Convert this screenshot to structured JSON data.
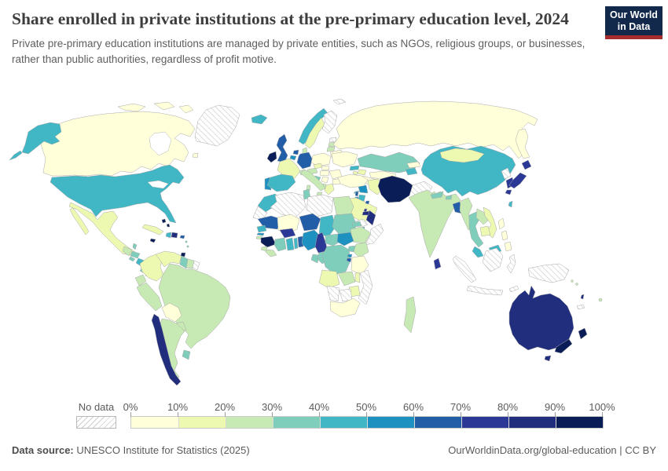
{
  "header": {
    "title": "Share enrolled in private institutions at the pre-primary education level, 2024",
    "subtitle": "Private pre-primary education institutions are managed by private entities, such as NGOs, religious groups, or businesses, rather than public authorities, regardless of profit motive.",
    "logo": {
      "line1": "Our World",
      "line2": "in Data",
      "bg_color": "#12294b",
      "accent_color": "#a52d2d"
    }
  },
  "legend": {
    "no_data_label": "No data",
    "tick_labels": [
      "0%",
      "10%",
      "20%",
      "30%",
      "40%",
      "50%",
      "60%",
      "70%",
      "80%",
      "90%",
      "100%"
    ]
  },
  "footer": {
    "source_label": "Data source:",
    "source_text": " UNESCO Institute for Statistics (2025)",
    "right_text": "OurWorldinData.org/global-education | CC BY"
  },
  "chart_data": {
    "type": "heatmap",
    "subtype": "choropleth-world-map",
    "title": "Share enrolled in private institutions at the pre-primary education level, 2024",
    "unit": "% of pre-primary enrolment in private institutions",
    "no_data_label": "No data",
    "legend_position": "bottom",
    "bins": [
      {
        "label": "0-10%",
        "color": "#ffffd9"
      },
      {
        "label": "10-20%",
        "color": "#edf8b1"
      },
      {
        "label": "20-30%",
        "color": "#c7e9b4"
      },
      {
        "label": "30-40%",
        "color": "#7fcdbb"
      },
      {
        "label": "40-50%",
        "color": "#41b6c4"
      },
      {
        "label": "50-60%",
        "color": "#1d91c0"
      },
      {
        "label": "60-70%",
        "color": "#225ea8"
      },
      {
        "label": "70-80%",
        "color": "#2c3895"
      },
      {
        "label": "80-90%",
        "color": "#202e7d"
      },
      {
        "label": "90-100%",
        "color": "#0b1d57"
      }
    ],
    "regions": [
      {
        "id": "canada",
        "name": "Canada",
        "bin": 0
      },
      {
        "id": "usa",
        "name": "United States",
        "bin": 4
      },
      {
        "id": "greenland",
        "name": "Greenland",
        "bin": -1
      },
      {
        "id": "mexico",
        "name": "Mexico",
        "bin": 1
      },
      {
        "id": "guatemala",
        "name": "Guatemala",
        "bin": 2
      },
      {
        "id": "belize",
        "name": "Belize",
        "bin": 3
      },
      {
        "id": "honduras",
        "name": "Honduras",
        "bin": 3
      },
      {
        "id": "el-salvador",
        "name": "El Salvador",
        "bin": 3
      },
      {
        "id": "nicaragua",
        "name": "Nicaragua",
        "bin": 4
      },
      {
        "id": "costa-rica",
        "name": "Costa Rica",
        "bin": 3
      },
      {
        "id": "panama",
        "name": "Panama",
        "bin": 4
      },
      {
        "id": "cuba",
        "name": "Cuba",
        "bin": 1
      },
      {
        "id": "jamaica",
        "name": "Jamaica",
        "bin": 9
      },
      {
        "id": "haiti",
        "name": "Haiti",
        "bin": 4
      },
      {
        "id": "dominican-republic",
        "name": "Dominican Republic",
        "bin": 8
      },
      {
        "id": "puerto-rico",
        "name": "Puerto Rico",
        "bin": 6
      },
      {
        "id": "bahamas",
        "name": "Bahamas",
        "bin": 9
      },
      {
        "id": "trinidad-and-tobago",
        "name": "Trinidad and Tobago",
        "bin": 9
      },
      {
        "id": "lesser-antilles",
        "name": "Lesser Antilles",
        "bin": 3
      },
      {
        "id": "colombia",
        "name": "Colombia",
        "bin": 1
      },
      {
        "id": "venezuela",
        "name": "Venezuela",
        "bin": 1
      },
      {
        "id": "guyana",
        "name": "Guyana",
        "bin": 3
      },
      {
        "id": "suriname",
        "name": "Suriname",
        "bin": 2
      },
      {
        "id": "french-guiana",
        "name": "French Guiana",
        "bin": -1
      },
      {
        "id": "ecuador",
        "name": "Ecuador",
        "bin": 2
      },
      {
        "id": "peru",
        "name": "Peru",
        "bin": 2
      },
      {
        "id": "brazil",
        "name": "Brazil",
        "bin": 2
      },
      {
        "id": "bolivia",
        "name": "Bolivia",
        "bin": 0
      },
      {
        "id": "paraguay",
        "name": "Paraguay",
        "bin": 2
      },
      {
        "id": "uruguay",
        "name": "Uruguay",
        "bin": 3
      },
      {
        "id": "argentina",
        "name": "Argentina",
        "bin": 2
      },
      {
        "id": "chile",
        "name": "Chile",
        "bin": 8
      },
      {
        "id": "iceland",
        "name": "Iceland",
        "bin": 4
      },
      {
        "id": "ireland",
        "name": "Ireland",
        "bin": 9
      },
      {
        "id": "united-kingdom",
        "name": "United Kingdom",
        "bin": 6
      },
      {
        "id": "norway",
        "name": "Norway",
        "bin": 4
      },
      {
        "id": "sweden",
        "name": "Sweden",
        "bin": 1
      },
      {
        "id": "finland",
        "name": "Finland",
        "bin": -1
      },
      {
        "id": "denmark",
        "name": "Denmark",
        "bin": 2
      },
      {
        "id": "estonia",
        "name": "Estonia",
        "bin": -1
      },
      {
        "id": "latvia",
        "name": "Latvia",
        "bin": 2
      },
      {
        "id": "lithuania",
        "name": "Lithuania",
        "bin": 2
      },
      {
        "id": "belarus",
        "name": "Belarus",
        "bin": 0
      },
      {
        "id": "poland",
        "name": "Poland",
        "bin": 0
      },
      {
        "id": "germany",
        "name": "Germany",
        "bin": 6
      },
      {
        "id": "netherlands",
        "name": "Netherlands",
        "bin": 6
      },
      {
        "id": "belgium",
        "name": "Belgium",
        "bin": 5
      },
      {
        "id": "france",
        "name": "France",
        "bin": 1
      },
      {
        "id": "switzerland",
        "name": "Switzerland",
        "bin": 2
      },
      {
        "id": "austria",
        "name": "Austria",
        "bin": 2
      },
      {
        "id": "czechia",
        "name": "Czechia",
        "bin": 1
      },
      {
        "id": "slovakia",
        "name": "Slovakia",
        "bin": 0
      },
      {
        "id": "hungary",
        "name": "Hungary",
        "bin": 0
      },
      {
        "id": "croatia",
        "name": "Croatia",
        "bin": 3
      },
      {
        "id": "serbia",
        "name": "Serbia",
        "bin": 0
      },
      {
        "id": "albania",
        "name": "Albania",
        "bin": 2
      },
      {
        "id": "greece",
        "name": "Greece",
        "bin": 1
      },
      {
        "id": "romania",
        "name": "Romania",
        "bin": 0
      },
      {
        "id": "bulgaria",
        "name": "Bulgaria",
        "bin": 0
      },
      {
        "id": "italy",
        "name": "Italy",
        "bin": 2
      },
      {
        "id": "ukraine",
        "name": "Ukraine",
        "bin": 0
      },
      {
        "id": "portugal",
        "name": "Portugal",
        "bin": 5
      },
      {
        "id": "spain",
        "name": "Spain",
        "bin": 4
      },
      {
        "id": "russia",
        "name": "Russia",
        "bin": 0
      },
      {
        "id": "svalbard",
        "name": "Svalbard",
        "bin": -1
      },
      {
        "id": "georgia",
        "name": "Georgia",
        "bin": 4
      },
      {
        "id": "azerbaijan",
        "name": "Azerbaijan",
        "bin": 1
      },
      {
        "id": "armenia",
        "name": "Armenia",
        "bin": 1
      },
      {
        "id": "kazakhstan",
        "name": "Kazakhstan",
        "bin": 3
      },
      {
        "id": "uzbekistan",
        "name": "Uzbekistan",
        "bin": 0
      },
      {
        "id": "turkmenistan",
        "name": "Turkmenistan",
        "bin": 0
      },
      {
        "id": "kyrgyzstan",
        "name": "Kyrgyzstan",
        "bin": 0
      },
      {
        "id": "tajikistan",
        "name": "Tajikistan",
        "bin": 4
      },
      {
        "id": "turkey",
        "name": "Turkey",
        "bin": 0
      },
      {
        "id": "cyprus",
        "name": "Cyprus",
        "bin": 4
      },
      {
        "id": "syria",
        "name": "Syria",
        "bin": 5
      },
      {
        "id": "lebanon",
        "name": "Lebanon",
        "bin": 6
      },
      {
        "id": "israel",
        "name": "Israel",
        "bin": 5
      },
      {
        "id": "jordan",
        "name": "Jordan",
        "bin": 4
      },
      {
        "id": "iraq",
        "name": "Iraq",
        "bin": 1
      },
      {
        "id": "iran",
        "name": "Iran",
        "bin": 9
      },
      {
        "id": "afghanistan",
        "name": "Afghanistan",
        "bin": -1
      },
      {
        "id": "pakistan",
        "name": "Pakistan",
        "bin": 2
      },
      {
        "id": "saudi-arabia",
        "name": "Saudi Arabia",
        "bin": 1
      },
      {
        "id": "yemen",
        "name": "Yemen",
        "bin": -1
      },
      {
        "id": "oman",
        "name": "Oman",
        "bin": 8
      },
      {
        "id": "uae",
        "name": "United Arab Emirates",
        "bin": 8
      },
      {
        "id": "kuwait",
        "name": "Kuwait",
        "bin": 6
      },
      {
        "id": "qatar",
        "name": "Qatar",
        "bin": 7
      },
      {
        "id": "morocco",
        "name": "Morocco",
        "bin": 4
      },
      {
        "id": "western-sahara",
        "name": "Western Sahara",
        "bin": -1
      },
      {
        "id": "algeria",
        "name": "Algeria",
        "bin": -1
      },
      {
        "id": "tunisia",
        "name": "Tunisia",
        "bin": 3
      },
      {
        "id": "libya",
        "name": "Libya",
        "bin": -1
      },
      {
        "id": "egypt",
        "name": "Egypt",
        "bin": 2
      },
      {
        "id": "mauritania",
        "name": "Mauritania",
        "bin": 6
      },
      {
        "id": "mali",
        "name": "Mali",
        "bin": 0
      },
      {
        "id": "niger",
        "name": "Niger",
        "bin": 6
      },
      {
        "id": "chad",
        "name": "Chad",
        "bin": 4
      },
      {
        "id": "sudan",
        "name": "Sudan",
        "bin": 3
      },
      {
        "id": "eritrea",
        "name": "Eritrea",
        "bin": 3
      },
      {
        "id": "djibouti",
        "name": "Djibouti",
        "bin": 4
      },
      {
        "id": "ethiopia",
        "name": "Ethiopia",
        "bin": 2
      },
      {
        "id": "somalia",
        "name": "Somalia",
        "bin": -1
      },
      {
        "id": "senegal",
        "name": "Senegal",
        "bin": 4
      },
      {
        "id": "gambia",
        "name": "Gambia",
        "bin": 5
      },
      {
        "id": "guinea-bissau",
        "name": "Guinea-Bissau",
        "bin": 2
      },
      {
        "id": "guinea",
        "name": "Guinea",
        "bin": 9
      },
      {
        "id": "sierra-leone",
        "name": "Sierra Leone",
        "bin": 2
      },
      {
        "id": "liberia",
        "name": "Liberia",
        "bin": 2
      },
      {
        "id": "cote-divoire",
        "name": "Cote d'Ivoire",
        "bin": 3
      },
      {
        "id": "burkina-faso",
        "name": "Burkina Faso",
        "bin": 7
      },
      {
        "id": "ghana",
        "name": "Ghana",
        "bin": 4
      },
      {
        "id": "togo",
        "name": "Togo",
        "bin": 4
      },
      {
        "id": "benin",
        "name": "Benin",
        "bin": 6
      },
      {
        "id": "nigeria",
        "name": "Nigeria",
        "bin": 5
      },
      {
        "id": "cameroon",
        "name": "Cameroon",
        "bin": 7
      },
      {
        "id": "central-african-republic",
        "name": "Central African Republic",
        "bin": 3
      },
      {
        "id": "south-sudan",
        "name": "South Sudan",
        "bin": 5
      },
      {
        "id": "gabon",
        "name": "Gabon",
        "bin": 3
      },
      {
        "id": "congo",
        "name": "Congo",
        "bin": 3
      },
      {
        "id": "drc",
        "name": "Democratic Republic of Congo",
        "bin": 3
      },
      {
        "id": "uganda",
        "name": "Uganda",
        "bin": 3
      },
      {
        "id": "kenya",
        "name": "Kenya",
        "bin": 2
      },
      {
        "id": "rwanda",
        "name": "Rwanda",
        "bin": 5
      },
      {
        "id": "burundi",
        "name": "Burundi",
        "bin": 6
      },
      {
        "id": "tanzania",
        "name": "Tanzania",
        "bin": 0
      },
      {
        "id": "angola",
        "name": "Angola",
        "bin": 1
      },
      {
        "id": "zambia",
        "name": "Zambia",
        "bin": 2
      },
      {
        "id": "malawi",
        "name": "Malawi",
        "bin": 1
      },
      {
        "id": "mozambique",
        "name": "Mozambique",
        "bin": -1
      },
      {
        "id": "zimbabwe",
        "name": "Zimbabwe",
        "bin": 1
      },
      {
        "id": "botswana",
        "name": "Botswana",
        "bin": -1
      },
      {
        "id": "namibia",
        "name": "Namibia",
        "bin": -1
      },
      {
        "id": "south-africa",
        "name": "South Africa",
        "bin": 0
      },
      {
        "id": "madagascar",
        "name": "Madagascar",
        "bin": 2
      },
      {
        "id": "india",
        "name": "India",
        "bin": 2
      },
      {
        "id": "nepal",
        "name": "Nepal",
        "bin": 3
      },
      {
        "id": "bhutan",
        "name": "Bhutan",
        "bin": 3
      },
      {
        "id": "bangladesh",
        "name": "Bangladesh",
        "bin": 6
      },
      {
        "id": "sri-lanka",
        "name": "Sri Lanka",
        "bin": 7
      },
      {
        "id": "myanmar",
        "name": "Myanmar",
        "bin": 2
      },
      {
        "id": "thailand",
        "name": "Thailand",
        "bin": 3
      },
      {
        "id": "laos",
        "name": "Laos",
        "bin": 2
      },
      {
        "id": "vietnam",
        "name": "Vietnam",
        "bin": 1
      },
      {
        "id": "cambodia",
        "name": "Cambodia",
        "bin": 1
      },
      {
        "id": "malaysia",
        "name": "Malaysia",
        "bin": 4
      },
      {
        "id": "china",
        "name": "China",
        "bin": 4
      },
      {
        "id": "mongolia",
        "name": "Mongolia",
        "bin": 1
      },
      {
        "id": "north-korea",
        "name": "North Korea",
        "bin": -1
      },
      {
        "id": "south-korea",
        "name": "South Korea",
        "bin": 7
      },
      {
        "id": "japan",
        "name": "Japan",
        "bin": 7
      },
      {
        "id": "taiwan",
        "name": "Taiwan",
        "bin": 4
      },
      {
        "id": "philippines",
        "name": "Philippines",
        "bin": 0
      },
      {
        "id": "indonesia",
        "name": "Indonesia",
        "bin": -1
      },
      {
        "id": "timor-leste",
        "name": "Timor-Leste",
        "bin": -1
      },
      {
        "id": "papua-new-guinea",
        "name": "Papua New Guinea",
        "bin": -1
      },
      {
        "id": "australia",
        "name": "Australia",
        "bin": 8
      },
      {
        "id": "new-zealand",
        "name": "New Zealand",
        "bin": 9
      },
      {
        "id": "solomon-islands",
        "name": "Solomon Islands",
        "bin": 2
      },
      {
        "id": "vanuatu",
        "name": "Vanuatu",
        "bin": 8
      },
      {
        "id": "fiji",
        "name": "Fiji",
        "bin": 2
      },
      {
        "id": "new-caledonia",
        "name": "New Caledonia",
        "bin": -1
      }
    ]
  }
}
